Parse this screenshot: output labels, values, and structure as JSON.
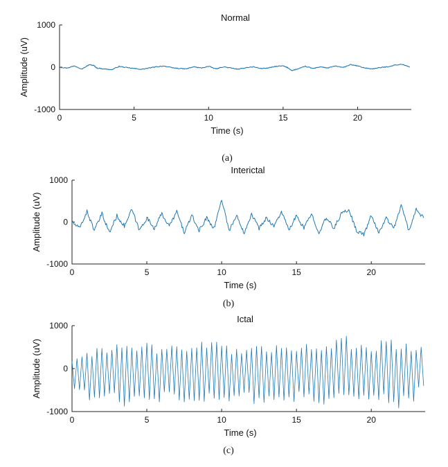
{
  "chart_data": [
    {
      "type": "line",
      "caption": "(a)",
      "title": "Normal",
      "xlabel": "Time (s)",
      "ylabel": "Amplitude (uV)",
      "xlim": [
        0,
        23.6
      ],
      "ylim": [
        -1000,
        1000
      ],
      "xticks": [
        0,
        5,
        10,
        15,
        20
      ],
      "yticks": [
        1000,
        0,
        -1000
      ],
      "grid": false,
      "series": [
        {
          "color": "#1f77b4",
          "x": [
            0,
            0.5,
            1,
            1.5,
            2,
            2.3,
            2.5,
            3,
            3.5,
            4,
            4.5,
            5,
            5.5,
            6,
            6.5,
            7,
            7.5,
            8,
            8.5,
            9,
            9.5,
            10,
            10.5,
            11,
            11.5,
            12,
            12.5,
            13,
            13.5,
            14,
            14.5,
            15,
            15.3,
            15.6,
            16,
            16.5,
            17,
            17.5,
            18,
            18.5,
            19,
            19.5,
            20,
            20.5,
            21,
            21.5,
            22,
            22.5,
            23,
            23.5
          ],
          "y": [
            0,
            -20,
            30,
            -40,
            60,
            40,
            -20,
            -40,
            -60,
            20,
            -10,
            -30,
            -50,
            -20,
            10,
            30,
            -10,
            -30,
            -40,
            10,
            -20,
            20,
            -40,
            10,
            -20,
            -50,
            -10,
            10,
            -30,
            -20,
            20,
            30,
            -10,
            -80,
            -40,
            20,
            -30,
            10,
            -20,
            30,
            -10,
            60,
            30,
            -20,
            -40,
            -10,
            10,
            50,
            70,
            0
          ]
        }
      ]
    },
    {
      "type": "line",
      "caption": "(b)",
      "title": "Interictal",
      "xlabel": "Time (s)",
      "ylabel": "Amplitude (uV)",
      "xlim": [
        0,
        23.6
      ],
      "ylim": [
        -1000,
        1000
      ],
      "xticks": [
        0,
        5,
        10,
        15,
        20
      ],
      "yticks": [
        1000,
        0,
        -1000
      ],
      "grid": false,
      "series": [
        {
          "color": "#1f77b4",
          "x": [
            0,
            0.5,
            1,
            1.5,
            2,
            2.5,
            3,
            3.5,
            4,
            4.5,
            5,
            5.5,
            6,
            6.5,
            7,
            7.5,
            8,
            8.5,
            9,
            9.5,
            10,
            10.5,
            11,
            11.5,
            12,
            12.5,
            13,
            13.5,
            14,
            14.5,
            15,
            15.5,
            16,
            16.5,
            17,
            17.5,
            18,
            18.5,
            19,
            19.5,
            20,
            20.5,
            21,
            21.5,
            22,
            22.5,
            23,
            23.5
          ],
          "y": [
            0,
            -150,
            250,
            -200,
            200,
            -250,
            150,
            -100,
            300,
            -200,
            100,
            -150,
            200,
            -100,
            250,
            -250,
            150,
            -200,
            100,
            -150,
            550,
            -200,
            150,
            -250,
            200,
            -150,
            100,
            -100,
            250,
            -200,
            150,
            -150,
            200,
            -250,
            100,
            -150,
            200,
            300,
            -200,
            -300,
            150,
            -250,
            100,
            -150,
            400,
            -200,
            300,
            100
          ]
        }
      ]
    },
    {
      "type": "line",
      "caption": "(c)",
      "title": "Ictal",
      "xlabel": "Time (s)",
      "ylabel": "Amplitude (uV)",
      "xlim": [
        0,
        23.6
      ],
      "ylim": [
        -1000,
        1000
      ],
      "xticks": [
        0,
        5,
        10,
        15,
        20
      ],
      "yticks": [
        1000,
        0,
        -1000
      ],
      "grid": false,
      "series": [
        {
          "color": "#1f77b4",
          "x": [
            0,
            0.5,
            1,
            1.5,
            2,
            2.5,
            3,
            3.5,
            4,
            4.5,
            5,
            5.5,
            6,
            6.5,
            7,
            7.5,
            8,
            8.5,
            9,
            9.5,
            10,
            10.5,
            11,
            11.5,
            12,
            12.5,
            13,
            13.5,
            14,
            14.5,
            15,
            15.5,
            16,
            16.5,
            17,
            17.5,
            18,
            18.5,
            19,
            19.5,
            20,
            20.5,
            21,
            21.5,
            22,
            22.5,
            23,
            23.5
          ],
          "y": [
            200,
            -500,
            300,
            -700,
            400,
            -600,
            500,
            -800,
            450,
            -650,
            550,
            -750,
            400,
            -600,
            500,
            -700,
            450,
            -800,
            550,
            -650,
            600,
            -700,
            400,
            -600,
            500,
            -750,
            450,
            -650,
            550,
            -700,
            400,
            -600,
            500,
            -750,
            450,
            -650,
            700,
            -600,
            500,
            -700,
            450,
            -650,
            600,
            -850,
            500,
            -700,
            450,
            -400
          ]
        }
      ]
    }
  ]
}
